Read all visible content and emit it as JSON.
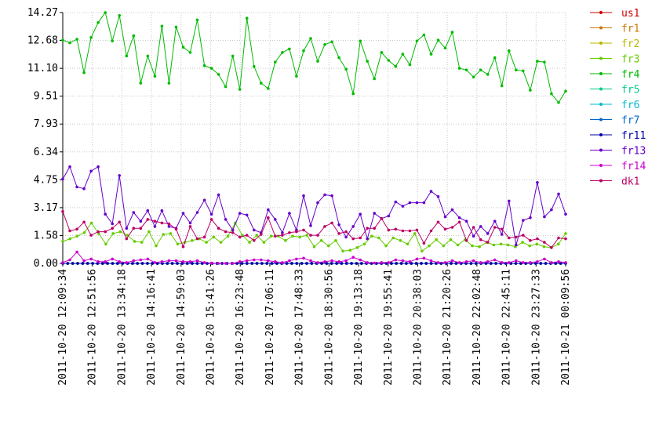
{
  "chart_data": {
    "type": "line",
    "title": "",
    "xlabel": "",
    "ylabel": "",
    "ylim": [
      0,
      14.27
    ],
    "yticks": [
      "0.00",
      "1.58",
      "3.17",
      "4.75",
      "6.34",
      "7.93",
      "9.51",
      "11.10",
      "12.68",
      "14.27"
    ],
    "xticks": [
      "2011-10-20 12:09:34",
      "2011-10-20 12:51:56",
      "2011-10-20 13:34:18",
      "2011-10-20 14:16:41",
      "2011-10-20 14:59:03",
      "2011-10-20 15:41:26",
      "2011-10-20 16:23:48",
      "2011-10-20 17:06:11",
      "2011-10-20 17:48:33",
      "2011-10-20 18:30:56",
      "2011-10-20 19:13:18",
      "2011-10-20 19:55:41",
      "2011-10-20 20:38:03",
      "2011-10-20 21:20:26",
      "2011-10-20 22:02:48",
      "2011-10-20 22:45:11",
      "2011-10-20 23:27:33",
      "2011-10-21 00:09:56"
    ],
    "grid": true,
    "legend_position": "right",
    "series": [
      {
        "name": "us1",
        "color": "#cc0000",
        "values": [
          0,
          0,
          0,
          0,
          0,
          0,
          0,
          0,
          0,
          0,
          0,
          0,
          0,
          0,
          0,
          0,
          0,
          0,
          0,
          0,
          0,
          0,
          0,
          0,
          0,
          0,
          0,
          0,
          0,
          0,
          0,
          0,
          0,
          0,
          0,
          0,
          0,
          0,
          0,
          0,
          0,
          0,
          0,
          0,
          0,
          0,
          0,
          0,
          0,
          0,
          0,
          0,
          0,
          0,
          0,
          0,
          0,
          0,
          0,
          0,
          0,
          0,
          0,
          0,
          0,
          0,
          0,
          0,
          0,
          0,
          0,
          0,
          0,
          0,
          0,
          0,
          0,
          0,
          0,
          0,
          0,
          0,
          0,
          0,
          0,
          0,
          0,
          0,
          0,
          0,
          0,
          0,
          0,
          0,
          0,
          0,
          0,
          0,
          0,
          0,
          0,
          0
        ]
      },
      {
        "name": "fr1",
        "color": "#cc7700",
        "values": [
          0,
          0,
          0,
          0,
          0,
          0,
          0,
          0,
          0,
          0,
          0,
          0,
          0,
          0,
          0,
          0,
          0,
          0,
          0,
          0,
          0,
          0,
          0,
          0,
          0,
          0,
          0,
          0,
          0,
          0,
          0,
          0,
          0,
          0,
          0,
          0,
          0,
          0,
          0,
          0,
          0,
          0,
          0,
          0,
          0,
          0,
          0,
          0,
          0,
          0,
          0,
          0,
          0,
          0,
          0,
          0,
          0,
          0,
          0,
          0,
          0,
          0,
          0,
          0,
          0,
          0,
          0,
          0,
          0,
          0,
          0,
          0,
          0,
          0,
          0,
          0,
          0,
          0,
          0,
          0,
          0,
          0,
          0,
          0,
          0,
          0,
          0,
          0,
          0,
          0,
          0,
          0,
          0,
          0,
          0,
          0,
          0,
          0,
          0,
          0,
          0,
          0
        ]
      },
      {
        "name": "fr2",
        "color": "#b8b800",
        "values": [
          0,
          0,
          0,
          0,
          0,
          0,
          0,
          0,
          0,
          0,
          0,
          0,
          0,
          0,
          0,
          0,
          0,
          0,
          0,
          0,
          0,
          0,
          0,
          0,
          0,
          0,
          0,
          0,
          0,
          0,
          0,
          0,
          0,
          0,
          0,
          0,
          0,
          0,
          0,
          0,
          0,
          0,
          0,
          0,
          0,
          0,
          0,
          0,
          0,
          0,
          0,
          0,
          0,
          0,
          0,
          0,
          0,
          0,
          0,
          0,
          0,
          0,
          0,
          0,
          0,
          0,
          0,
          0,
          0,
          0,
          0,
          0,
          0,
          0,
          0,
          0,
          0,
          0,
          0,
          0,
          0,
          0,
          0,
          0,
          0,
          0,
          0,
          0,
          0,
          0,
          0,
          0,
          0,
          0,
          0,
          0,
          0,
          0,
          0,
          0,
          0,
          0
        ]
      },
      {
        "name": "fr3",
        "color": "#66cc00",
        "values": [
          1.25,
          1.4,
          1.55,
          1.75,
          2.3,
          1.7,
          1.1,
          1.7,
          1.8,
          1.6,
          1.25,
          1.2,
          1.8,
          1.0,
          1.65,
          1.7,
          1.1,
          1.2,
          1.3,
          1.4,
          1.2,
          1.5,
          1.2,
          1.55,
          2.3,
          1.6,
          1.2,
          1.6,
          1.2,
          1.55,
          1.55,
          1.3,
          1.55,
          1.5,
          1.6,
          0.95,
          1.3,
          1.0,
          1.3,
          0.7,
          0.75,
          0.9,
          1.1,
          1.55,
          1.45,
          1.0,
          1.45,
          1.3,
          1.1,
          1.7,
          0.7,
          1.0,
          1.35,
          1.0,
          1.35,
          1.05,
          1.35,
          1.0,
          0.95,
          1.2,
          1.05,
          1.1,
          1.05,
          0.95,
          1.2,
          1.0,
          1.1,
          0.95,
          0.9,
          1.1,
          1.7
        ]
      },
      {
        "name": "fr4",
        "color": "#00bb00",
        "values": [
          12.7,
          12.55,
          12.75,
          10.85,
          12.85,
          13.7,
          14.27,
          12.65,
          14.1,
          11.8,
          12.95,
          10.25,
          11.8,
          10.65,
          13.5,
          10.25,
          13.45,
          12.3,
          12.0,
          13.85,
          11.25,
          11.1,
          10.75,
          10.05,
          11.8,
          9.9,
          13.95,
          11.2,
          10.25,
          9.95,
          11.45,
          12.0,
          12.2,
          10.65,
          12.1,
          12.8,
          11.5,
          12.45,
          12.6,
          11.7,
          11.05,
          9.65,
          12.65,
          11.5,
          10.5,
          12.0,
          11.55,
          11.2,
          11.9,
          11.3,
          12.65,
          13.0,
          11.9,
          12.7,
          12.25,
          13.15,
          11.1,
          11.0,
          10.6,
          11.0,
          10.75,
          11.7,
          10.1,
          12.1,
          11.0,
          10.95,
          9.85,
          11.5,
          11.45,
          9.65,
          9.15,
          9.8
        ]
      },
      {
        "name": "fr5",
        "color": "#00cc88",
        "values": [
          0,
          0,
          0,
          0,
          0,
          0,
          0,
          0,
          0,
          0,
          0,
          0,
          0,
          0,
          0,
          0,
          0,
          0,
          0,
          0,
          0,
          0,
          0,
          0,
          0,
          0,
          0,
          0,
          0,
          0,
          0,
          0,
          0,
          0,
          0,
          0,
          0,
          0,
          0,
          0,
          0,
          0,
          0,
          0,
          0,
          0,
          0,
          0,
          0,
          0,
          0,
          0,
          0,
          0,
          0,
          0,
          0,
          0,
          0,
          0,
          0,
          0,
          0,
          0,
          0,
          0,
          0,
          0,
          0,
          0,
          0,
          0,
          0,
          0,
          0,
          0,
          0,
          0,
          0,
          0,
          0,
          0,
          0,
          0,
          0,
          0,
          0,
          0,
          0,
          0,
          0,
          0,
          0,
          0,
          0,
          0,
          0,
          0,
          0,
          0,
          0,
          0
        ]
      },
      {
        "name": "fr6",
        "color": "#00bbcc",
        "values": [
          0,
          0,
          0,
          0,
          0,
          0,
          0,
          0,
          0,
          0,
          0,
          0,
          0,
          0,
          0,
          0,
          0,
          0,
          0,
          0,
          0,
          0,
          0,
          0,
          0,
          0,
          0,
          0,
          0,
          0,
          0,
          0,
          0,
          0,
          0,
          0,
          0,
          0,
          0,
          0,
          0,
          0,
          0,
          0,
          0,
          0,
          0,
          0,
          0,
          0,
          0,
          0,
          0,
          0,
          0,
          0,
          0,
          0,
          0,
          0,
          0,
          0,
          0,
          0,
          0,
          0,
          0,
          0,
          0,
          0,
          0,
          0,
          0,
          0,
          0,
          0,
          0,
          0,
          0,
          0,
          0,
          0,
          0,
          0,
          0,
          0,
          0,
          0,
          0,
          0,
          0,
          0,
          0,
          0,
          0,
          0,
          0,
          0,
          0,
          0,
          0,
          0
        ]
      },
      {
        "name": "fr7",
        "color": "#0066cc",
        "values": [
          0,
          0,
          0,
          0,
          0,
          0,
          0,
          0,
          0,
          0,
          0,
          0,
          0,
          0,
          0,
          0,
          0,
          0,
          0,
          0,
          0,
          0,
          0,
          0,
          0,
          0,
          0,
          0,
          0,
          0,
          0,
          0,
          0,
          0,
          0,
          0,
          0,
          0,
          0,
          0,
          0,
          0,
          0,
          0,
          0,
          0,
          0,
          0,
          0,
          0,
          0,
          0,
          0,
          0,
          0,
          0,
          0,
          0,
          0,
          0,
          0,
          0,
          0,
          0,
          0,
          0,
          0,
          0,
          0,
          0,
          0,
          0,
          0,
          0,
          0,
          0,
          0,
          0,
          0,
          0,
          0,
          0,
          0,
          0,
          0,
          0,
          0,
          0,
          0,
          0,
          0,
          0,
          0,
          0,
          0,
          0,
          0,
          0,
          0,
          0,
          0,
          0
        ]
      },
      {
        "name": "fr11",
        "color": "#0000aa",
        "values": [
          0,
          0,
          0,
          0,
          0,
          0,
          0,
          0,
          0,
          0,
          0,
          0,
          0,
          0,
          0,
          0,
          0,
          0,
          0,
          0,
          0,
          0,
          0,
          0,
          0,
          0,
          0,
          0,
          0,
          0,
          0,
          0,
          0,
          0,
          0,
          0,
          0,
          0,
          0,
          0,
          0,
          0,
          0,
          0,
          0,
          0,
          0,
          0,
          0,
          0,
          0,
          0,
          0,
          0,
          0,
          0,
          0,
          0,
          0,
          0,
          0,
          0,
          0,
          0,
          0,
          0,
          0,
          0,
          0,
          0,
          0,
          0,
          0,
          0,
          0,
          0,
          0,
          0,
          0,
          0,
          0,
          0,
          0,
          0,
          0,
          0,
          0,
          0,
          0,
          0,
          0,
          0,
          0,
          0,
          0,
          0,
          0,
          0,
          0,
          0,
          0,
          0
        ]
      },
      {
        "name": "fr13",
        "color": "#6600cc",
        "values": [
          4.8,
          5.5,
          4.35,
          4.25,
          5.25,
          5.5,
          2.8,
          2.25,
          5.0,
          2.0,
          2.9,
          2.4,
          3.0,
          2.1,
          3.0,
          2.1,
          2.0,
          2.85,
          2.3,
          2.9,
          3.6,
          2.8,
          3.9,
          2.5,
          1.9,
          2.85,
          2.75,
          1.9,
          1.75,
          3.05,
          2.5,
          1.75,
          2.85,
          1.9,
          3.85,
          2.15,
          3.45,
          3.9,
          3.85,
          2.2,
          1.5,
          2.1,
          2.8,
          1.4,
          2.85,
          2.55,
          2.7,
          3.5,
          3.25,
          3.45,
          3.45,
          3.45,
          4.1,
          3.8,
          2.65,
          3.05,
          2.6,
          2.4,
          1.55,
          2.1,
          1.7,
          2.4,
          1.65,
          3.55,
          1.05,
          2.45,
          2.6,
          4.6,
          2.65,
          3.05,
          3.95,
          2.8
        ]
      },
      {
        "name": "fr14",
        "color": "#cc00cc",
        "values": [
          0.05,
          0.2,
          0.65,
          0.15,
          0.25,
          0.1,
          0.1,
          0.25,
          0.1,
          0.05,
          0.15,
          0.2,
          0.25,
          0.05,
          0.1,
          0.15,
          0.15,
          0.1,
          0.1,
          0.15,
          0.05,
          0.02,
          0.0,
          0.0,
          0.0,
          0.1,
          0.15,
          0.2,
          0.2,
          0.15,
          0.1,
          0.05,
          0.15,
          0.25,
          0.3,
          0.15,
          0.05,
          0.1,
          0.15,
          0.1,
          0.15,
          0.35,
          0.2,
          0.05,
          0.02,
          0.05,
          0.05,
          0.2,
          0.15,
          0.1,
          0.25,
          0.3,
          0.15,
          0.05,
          0.05,
          0.15,
          0.05,
          0.1,
          0.15,
          0.05,
          0.1,
          0.2,
          0.05,
          0.05,
          0.15,
          0.05,
          0.05,
          0.1,
          0.25,
          0.05,
          0.1,
          0.05
        ]
      },
      {
        "name": "dk1",
        "color": "#bb0066",
        "values": [
          2.95,
          1.85,
          1.95,
          2.35,
          1.6,
          1.8,
          1.8,
          2.0,
          2.35,
          1.4,
          2.0,
          2.0,
          2.5,
          2.4,
          2.3,
          2.25,
          1.95,
          0.95,
          2.1,
          1.4,
          1.5,
          2.5,
          2.0,
          1.8,
          1.75,
          1.5,
          1.6,
          1.3,
          1.65,
          2.6,
          1.55,
          1.6,
          1.75,
          1.8,
          1.9,
          1.6,
          1.6,
          2.1,
          2.3,
          1.7,
          1.8,
          1.4,
          1.45,
          2.0,
          2.0,
          2.55,
          1.9,
          1.95,
          1.85,
          1.85,
          1.9,
          1.15,
          1.85,
          2.35,
          1.95,
          2.05,
          2.35,
          1.3,
          2.05,
          1.35,
          1.2,
          2.05,
          1.95,
          1.45,
          1.5,
          1.6,
          1.3,
          1.4,
          1.2,
          0.9,
          1.45,
          1.4
        ]
      }
    ]
  }
}
